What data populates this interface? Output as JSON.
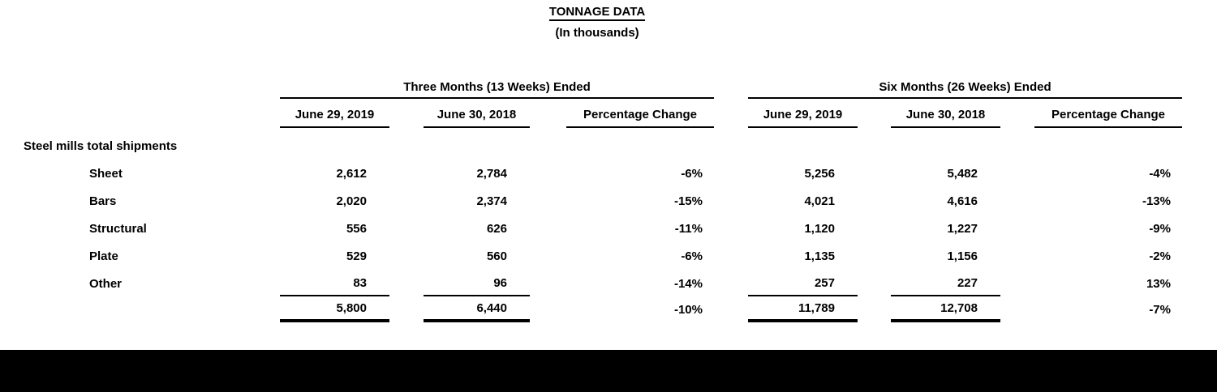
{
  "page": {
    "title": "TONNAGE DATA",
    "subtitle": "(In thousands)"
  },
  "table": {
    "group_headers": {
      "three_months": "Three Months (13 Weeks) Ended",
      "six_months": "Six Months (26 Weeks) Ended"
    },
    "column_headers": {
      "three_2019": "June 29, 2019",
      "three_2018": "June 30, 2018",
      "three_pct": "Percentage Change",
      "six_2019": "June 29, 2019",
      "six_2018": "June 30, 2018",
      "six_pct": "Percentage Change"
    },
    "section_label": "Steel mills total shipments",
    "rows": [
      {
        "label": "Sheet",
        "three_2019": "2,612",
        "three_2018": "2,784",
        "three_pct": "-6%",
        "six_2019": "5,256",
        "six_2018": "5,482",
        "six_pct": "-4%"
      },
      {
        "label": "Bars",
        "three_2019": "2,020",
        "three_2018": "2,374",
        "three_pct": "-15%",
        "six_2019": "4,021",
        "six_2018": "4,616",
        "six_pct": "-13%"
      },
      {
        "label": "Structural",
        "three_2019": "556",
        "three_2018": "626",
        "three_pct": "-11%",
        "six_2019": "1,120",
        "six_2018": "1,227",
        "six_pct": "-9%"
      },
      {
        "label": "Plate",
        "three_2019": "529",
        "three_2018": "560",
        "three_pct": "-6%",
        "six_2019": "1,135",
        "six_2018": "1,156",
        "six_pct": "-2%"
      },
      {
        "label": "Other",
        "three_2019": "83",
        "three_2018": "96",
        "three_pct": "-14%",
        "six_2019": "257",
        "six_2018": "227",
        "six_pct": "13%"
      }
    ],
    "totals": {
      "three_2019": "5,800",
      "three_2018": "6,440",
      "three_pct": "-10%",
      "six_2019": "11,789",
      "six_2018": "12,708",
      "six_pct": "-7%"
    }
  },
  "colors": {
    "text": "#000000",
    "background": "#ffffff",
    "footer_bar": "#000000"
  }
}
